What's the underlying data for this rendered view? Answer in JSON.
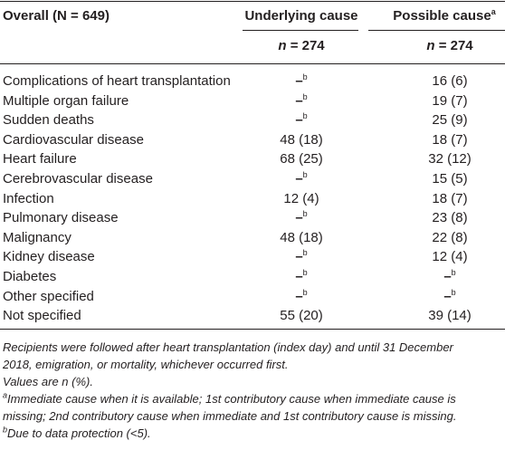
{
  "table": {
    "header": {
      "label": "Overall (N = 649)",
      "underlying": "Underlying cause",
      "possible": "Possible cause",
      "possible_sup": "a"
    },
    "subheader": {
      "underlying": {
        "var": "n",
        "rest": " = 274"
      },
      "possible": {
        "var": "n",
        "rest": " = 274"
      }
    },
    "rows": [
      {
        "label": "Complications of heart transplantation",
        "underlying": {
          "text": "–",
          "sup": "b"
        },
        "possible": {
          "text": "16 (6)"
        }
      },
      {
        "label": "Multiple organ failure",
        "underlying": {
          "text": "–",
          "sup": "b"
        },
        "possible": {
          "text": "19 (7)"
        }
      },
      {
        "label": "Sudden deaths",
        "underlying": {
          "text": "–",
          "sup": "b"
        },
        "possible": {
          "text": "25 (9)"
        }
      },
      {
        "label": "Cardiovascular disease",
        "underlying": {
          "text": "48 (18)"
        },
        "possible": {
          "text": "18 (7)"
        }
      },
      {
        "label": "Heart failure",
        "underlying": {
          "text": "68 (25)"
        },
        "possible": {
          "text": "32 (12)"
        }
      },
      {
        "label": "Cerebrovascular disease",
        "underlying": {
          "text": "–",
          "sup": "b"
        },
        "possible": {
          "text": "15 (5)"
        }
      },
      {
        "label": "Infection",
        "underlying": {
          "text": "12 (4)"
        },
        "possible": {
          "text": "18 (7)"
        }
      },
      {
        "label": "Pulmonary disease",
        "underlying": {
          "text": "–",
          "sup": "b"
        },
        "possible": {
          "text": "23 (8)"
        }
      },
      {
        "label": "Malignancy",
        "underlying": {
          "text": "48 (18)"
        },
        "possible": {
          "text": "22 (8)"
        }
      },
      {
        "label": "Kidney disease",
        "underlying": {
          "text": "–",
          "sup": "b"
        },
        "possible": {
          "text": "12 (4)"
        }
      },
      {
        "label": "Diabetes",
        "underlying": {
          "text": "–",
          "sup": "b"
        },
        "possible": {
          "text": "–",
          "sup": "b"
        }
      },
      {
        "label": "Other specified",
        "underlying": {
          "text": "–",
          "sup": "b"
        },
        "possible": {
          "text": "–",
          "sup": "b"
        }
      },
      {
        "label": "Not specified",
        "underlying": {
          "text": "55 (20)"
        },
        "possible": {
          "text": "39 (14)"
        }
      }
    ]
  },
  "footnotes": [
    {
      "lines": [
        "Recipients were followed after heart transplantation (index day) and until 31 December",
        "2018, emigration, or mortality, whichever occurred first."
      ]
    },
    {
      "lines": [
        "Values are n (%)."
      ]
    },
    {
      "sup": "a",
      "lines": [
        "Immediate cause when it is available; 1st contributory cause when immediate cause is",
        "missing; 2nd contributory cause when immediate and 1st contributory cause is missing."
      ]
    },
    {
      "sup": "b",
      "lines": [
        "Due to data protection (<5)."
      ]
    }
  ]
}
